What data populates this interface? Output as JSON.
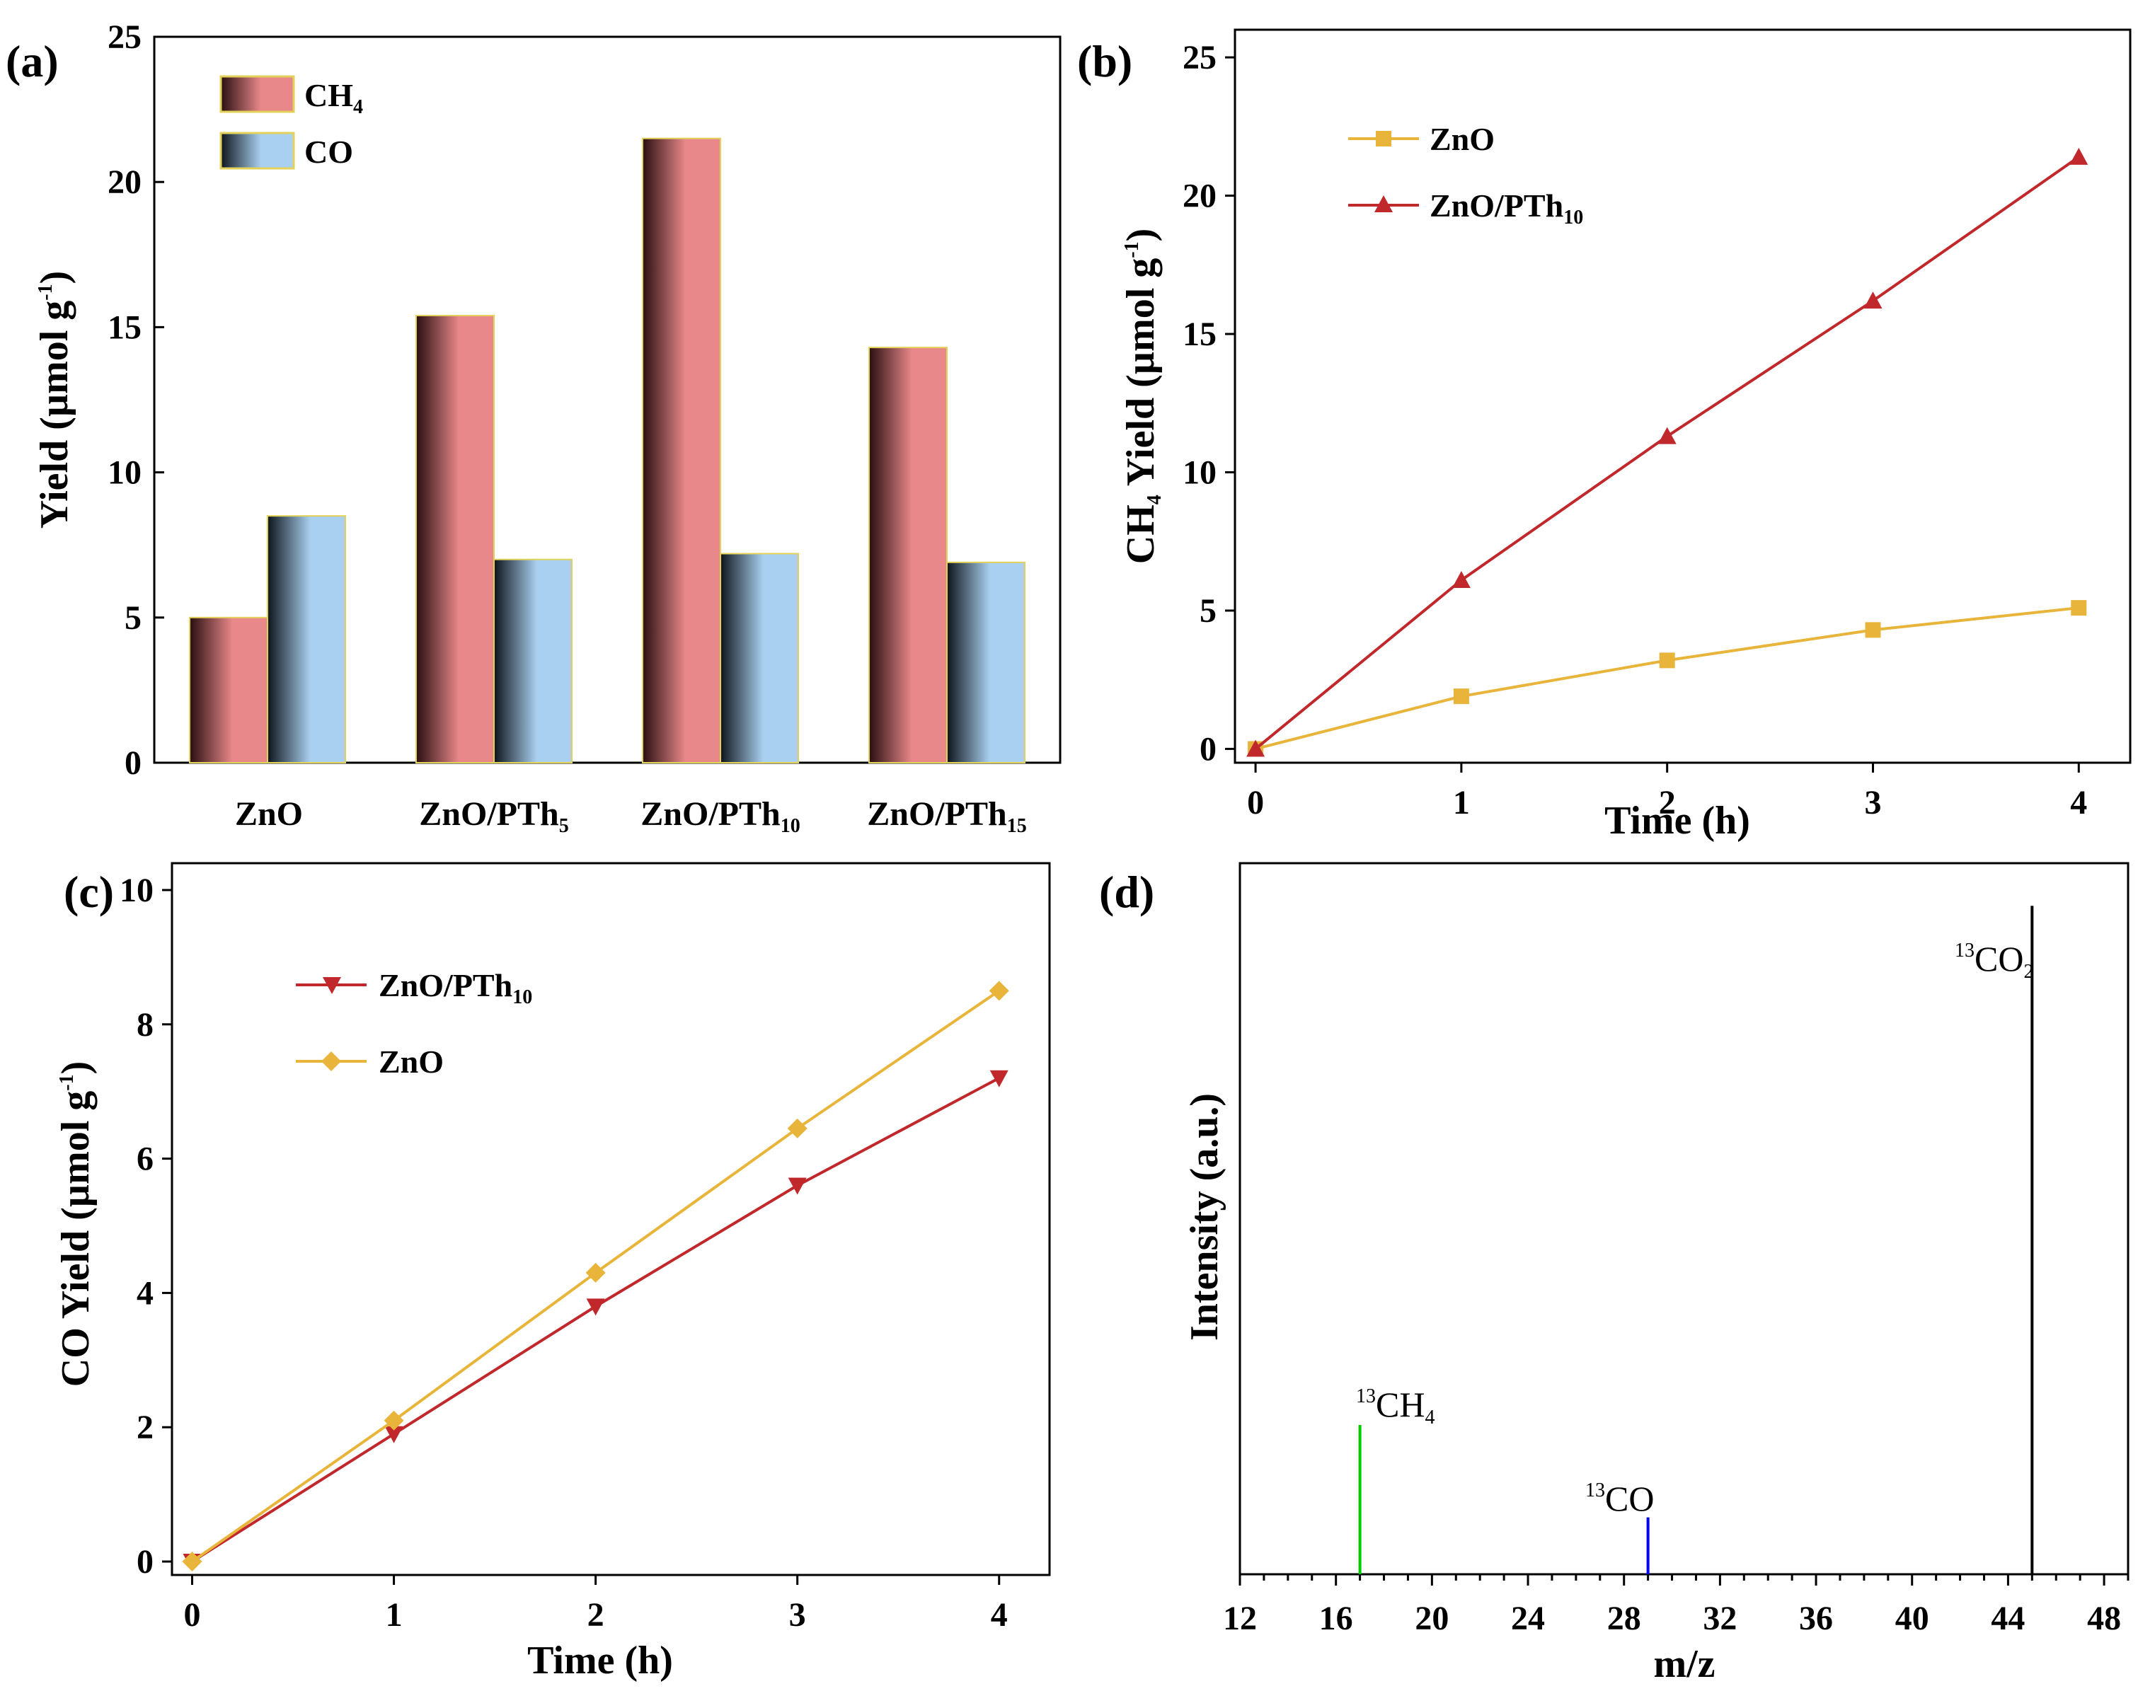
{
  "charts": [
    {
      "id": "a",
      "panel_label": "(a)",
      "ylabel": "Yield (µmol g",
      "ylabel_sup": "-1",
      "ylabel_end": ")",
      "legend": [
        {
          "text": "CH",
          "sub": "4"
        },
        {
          "text": "CO",
          "sub": ""
        }
      ],
      "x_ticks": [
        {
          "text": "ZnO",
          "sub": ""
        },
        {
          "text": "ZnO/PTh",
          "sub": "5"
        },
        {
          "text": "ZnO/PTh",
          "sub": "10"
        },
        {
          "text": "ZnO/PTh",
          "sub": "15"
        }
      ]
    },
    {
      "id": "b",
      "panel_label": "(b)",
      "xlabel": "Time (h)",
      "ylabel_pre": "CH",
      "ylabel_sub": "4",
      "ylabel_mid": " Yield (µmol g",
      "ylabel_sup": "-1",
      "ylabel_end": ")",
      "legend": [
        {
          "text": "ZnO",
          "sub": ""
        },
        {
          "text": "ZnO/PTh",
          "sub": "10"
        }
      ]
    },
    {
      "id": "c",
      "panel_label": "(c)",
      "xlabel": "Time (h)",
      "ylabel": "CO Yield (µmol g",
      "ylabel_sup": "-1",
      "ylabel_end": ")",
      "legend": [
        {
          "text": "ZnO/PTh",
          "sub": "10"
        },
        {
          "text": "ZnO",
          "sub": ""
        }
      ]
    },
    {
      "id": "d",
      "panel_label": "(d)",
      "xlabel": "m/z",
      "ylabel": "Intensity (a.u.)",
      "peaks": [
        {
          "sup": "13",
          "text": "CH",
          "sub": "4"
        },
        {
          "sup": "13",
          "text": "CO",
          "sub": ""
        },
        {
          "sup": "13",
          "text": "CO",
          "sub": "2"
        }
      ]
    }
  ],
  "chart_data": [
    {
      "type": "bar",
      "categories": [
        "ZnO",
        "ZnO/PTh5",
        "ZnO/PTh10",
        "ZnO/PTh15"
      ],
      "series": [
        {
          "name": "CH4",
          "values": [
            5.0,
            15.4,
            21.5,
            14.3
          ],
          "color": "#e8888a"
        },
        {
          "name": "CO",
          "values": [
            8.5,
            7.0,
            7.2,
            6.9
          ],
          "color": "#a9d0f0"
        }
      ],
      "ylim": [
        0,
        25
      ],
      "yticks": [
        0,
        5,
        10,
        15,
        20,
        25
      ],
      "legend_position": "top-left"
    },
    {
      "type": "line",
      "x": [
        0,
        1,
        2,
        3,
        4
      ],
      "series": [
        {
          "name": "ZnO",
          "values": [
            0,
            1.9,
            3.2,
            4.3,
            5.1
          ],
          "color": "#e8b53a",
          "marker": "square"
        },
        {
          "name": "ZnO/PTh10",
          "values": [
            0,
            6.1,
            11.3,
            16.2,
            21.4
          ],
          "color": "#c0282c",
          "marker": "triangle-up"
        }
      ],
      "xlim": [
        -0.1,
        4.25
      ],
      "ylim": [
        -0.5,
        26
      ],
      "xticks": [
        0,
        1,
        2,
        3,
        4
      ],
      "yticks": [
        0,
        5,
        10,
        15,
        20,
        25
      ],
      "legend_position": "top-left"
    },
    {
      "type": "line",
      "x": [
        0,
        1,
        2,
        3,
        4
      ],
      "series": [
        {
          "name": "ZnO/PTh10",
          "values": [
            0,
            1.9,
            3.8,
            5.6,
            7.2
          ],
          "color": "#c0282c",
          "marker": "triangle-down"
        },
        {
          "name": "ZnO",
          "values": [
            0,
            2.1,
            4.3,
            6.45,
            8.5
          ],
          "color": "#e8b53a",
          "marker": "diamond"
        }
      ],
      "xlim": [
        -0.1,
        4.25
      ],
      "ylim": [
        -0.2,
        10.4
      ],
      "xticks": [
        0,
        1,
        2,
        3,
        4
      ],
      "yticks": [
        0,
        2,
        4,
        6,
        8,
        10
      ],
      "legend_position": "top-left"
    },
    {
      "type": "bar",
      "x": [
        17,
        29,
        45
      ],
      "values": [
        0.21,
        0.08,
        0.94
      ],
      "colors": [
        "#00cc00",
        "#0000ff",
        "#000000"
      ],
      "xlim": [
        12,
        49
      ],
      "ylim": [
        0,
        1
      ],
      "xticks": [
        12,
        16,
        20,
        24,
        28,
        32,
        36,
        40,
        44,
        48
      ]
    }
  ]
}
